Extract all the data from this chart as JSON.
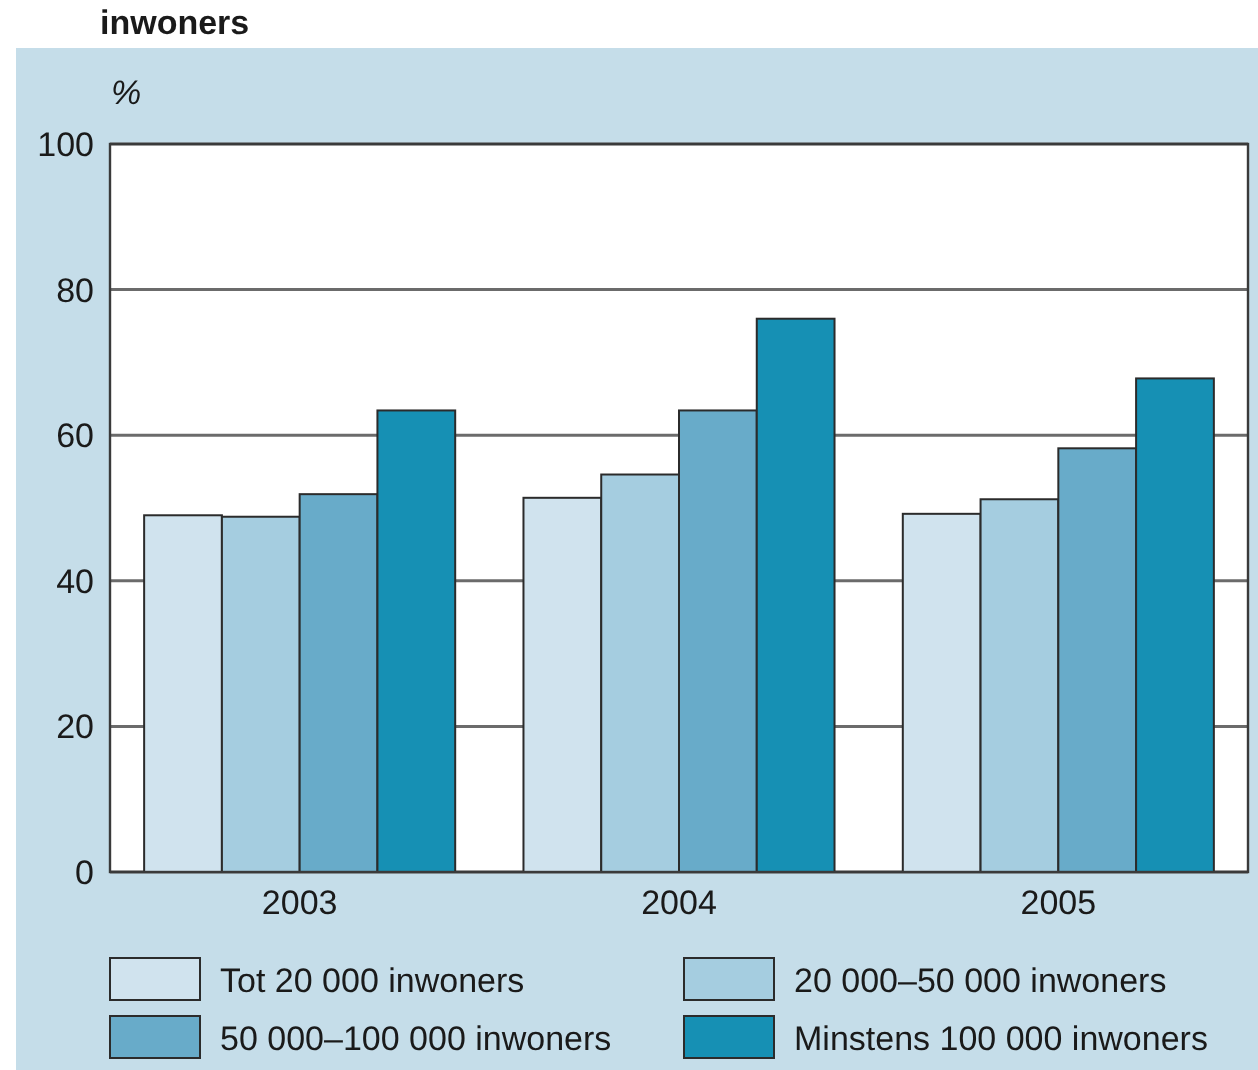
{
  "chart_data": {
    "type": "bar",
    "title": "inwoners",
    "ylabel": "%",
    "categories": [
      "2003",
      "2004",
      "2005"
    ],
    "series": [
      {
        "name": "Tot 20 000 inwoners",
        "color": "#d0e3ee",
        "values": [
          49.0,
          51.4,
          49.2
        ]
      },
      {
        "name": "20 000–50 000 inwoners",
        "color": "#a5cde0",
        "values": [
          48.8,
          54.6,
          51.2
        ]
      },
      {
        "name": "50 000–100 000 inwoners",
        "color": "#68abc9",
        "values": [
          51.9,
          63.4,
          58.2
        ]
      },
      {
        "name": "Minstens 100 000 inwoners",
        "color": "#1690b4",
        "values": [
          63.4,
          76.0,
          67.8
        ]
      }
    ],
    "ylim": [
      0,
      100
    ],
    "yticks": [
      0,
      20,
      40,
      60,
      80,
      100
    ],
    "grid": "y",
    "legend": "bottom"
  }
}
